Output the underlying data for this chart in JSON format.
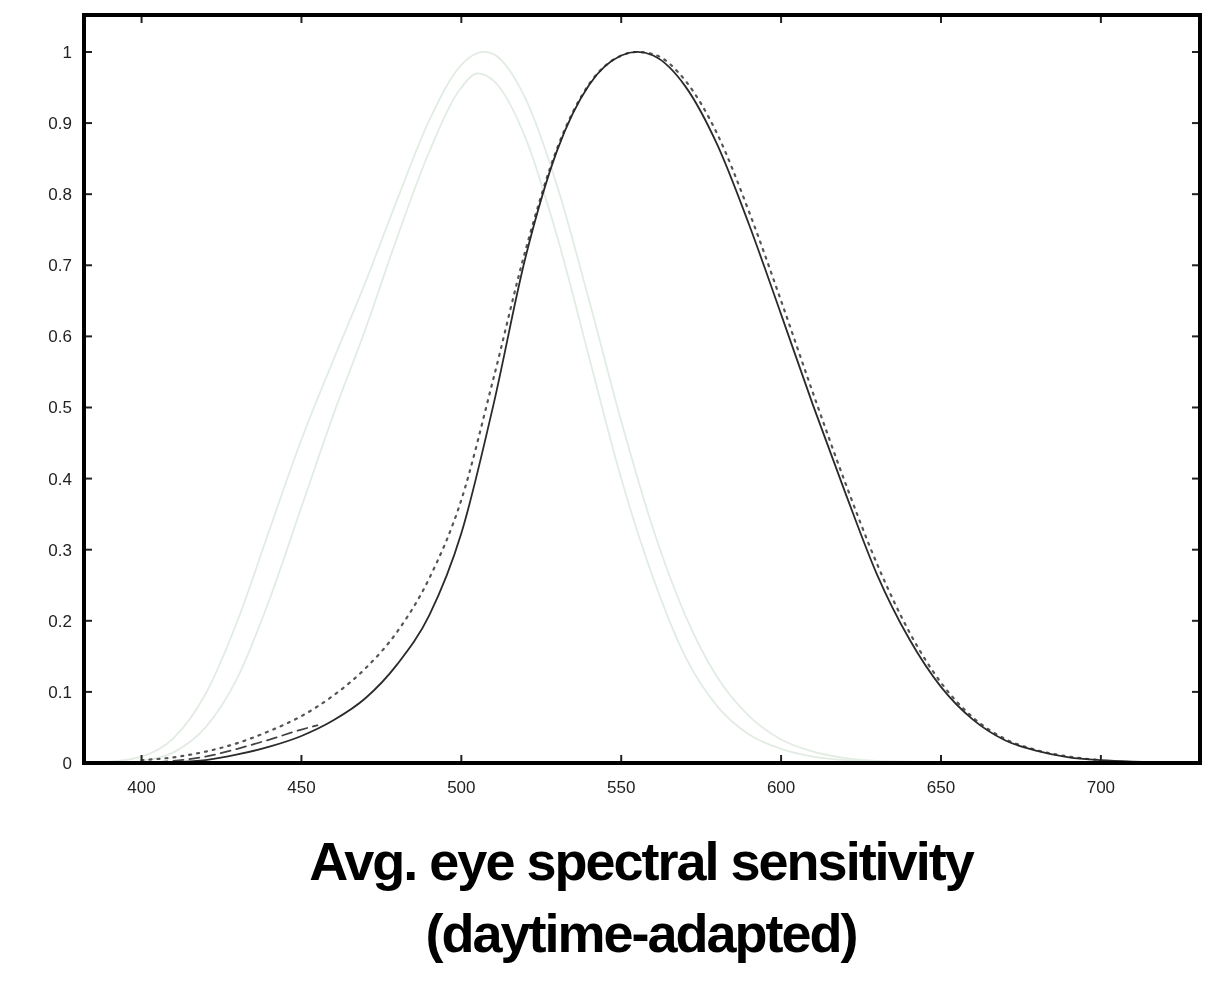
{
  "chart_data": {
    "type": "line",
    "title": "Avg. eye spectral sensitivity\n(daytime-adapted)",
    "xlim": [
      382,
      731
    ],
    "ylim": [
      0,
      1.052
    ],
    "xticks": [
      400,
      450,
      500,
      550,
      600,
      650,
      700
    ],
    "yticks": [
      0,
      {
        "value": 0.1,
        "label": "0.1"
      },
      {
        "value": 0.2,
        "label": "0.2"
      },
      {
        "value": 0.3,
        "label": "0.3"
      },
      {
        "value": 0.4,
        "label": "0.4"
      },
      {
        "value": 0.5,
        "label": "0.5"
      },
      {
        "value": 0.6,
        "label": "0.6"
      },
      {
        "value": 0.7,
        "label": "0.7"
      },
      {
        "value": 0.8,
        "label": "0.8"
      },
      {
        "value": 0.9,
        "label": "0.9"
      },
      1
    ],
    "grid": false,
    "series": [
      {
        "color": "#e2ece2",
        "line_style": "solid",
        "x": [
          390,
          400,
          410,
          420,
          430,
          440,
          450,
          460,
          470,
          480,
          490,
          500,
          507,
          510,
          520,
          530,
          540,
          550,
          560,
          570,
          580,
          590,
          600,
          610,
          620,
          630,
          640,
          650
        ],
        "values": [
          0.002,
          0.009,
          0.035,
          0.097,
          0.2,
          0.328,
          0.455,
          0.567,
          0.676,
          0.793,
          0.904,
          0.982,
          1.0,
          0.997,
          0.935,
          0.811,
          0.65,
          0.481,
          0.329,
          0.208,
          0.121,
          0.066,
          0.033,
          0.016,
          0.007,
          0.003,
          0.002,
          0.001
        ]
      },
      {
        "color": "#e2ece2",
        "line_style": "solid",
        "x": [
          400,
          410,
          420,
          430,
          440,
          450,
          460,
          470,
          480,
          490,
          500,
          505,
          510,
          520,
          530,
          540,
          550,
          560,
          570,
          580,
          590,
          600,
          610,
          620,
          630,
          640
        ],
        "values": [
          0.003,
          0.015,
          0.05,
          0.12,
          0.23,
          0.36,
          0.49,
          0.61,
          0.74,
          0.86,
          0.95,
          0.97,
          0.96,
          0.88,
          0.74,
          0.57,
          0.4,
          0.26,
          0.15,
          0.08,
          0.04,
          0.02,
          0.009,
          0.004,
          0.002,
          0.001
        ]
      },
      {
        "color": "#555555",
        "line_style": "dotted",
        "x": [
          400,
          410,
          420,
          430,
          440,
          450,
          460,
          470,
          480,
          490,
          500,
          510,
          520,
          530,
          540,
          550,
          555,
          560,
          570,
          580,
          590,
          600,
          610,
          620,
          630,
          640,
          650,
          660,
          670,
          680,
          690,
          700
        ],
        "values": [
          0.004,
          0.008,
          0.016,
          0.028,
          0.045,
          0.066,
          0.095,
          0.133,
          0.185,
          0.26,
          0.37,
          0.54,
          0.72,
          0.865,
          0.955,
          0.995,
          1.0,
          0.997,
          0.96,
          0.885,
          0.775,
          0.65,
          0.52,
          0.395,
          0.28,
          0.185,
          0.113,
          0.064,
          0.034,
          0.018,
          0.009,
          0.004
        ]
      },
      {
        "color": "#444444",
        "line_style": "dashed",
        "x": [
          405,
          410,
          420,
          430,
          440,
          450,
          455
        ],
        "values": [
          0.001,
          0.003,
          0.009,
          0.02,
          0.033,
          0.047,
          0.053
        ]
      },
      {
        "color": "#2a2a2a",
        "line_style": "solid",
        "x": [
          400,
          410,
          420,
          430,
          440,
          450,
          460,
          470,
          480,
          490,
          500,
          510,
          520,
          530,
          540,
          550,
          555,
          560,
          570,
          580,
          590,
          600,
          610,
          620,
          630,
          640,
          650,
          660,
          670,
          680,
          690,
          700,
          710,
          720,
          730
        ],
        "values": [
          0.0,
          0.001,
          0.004,
          0.012,
          0.023,
          0.038,
          0.06,
          0.091,
          0.139,
          0.208,
          0.323,
          0.503,
          0.71,
          0.862,
          0.954,
          0.995,
          1.0,
          0.995,
          0.952,
          0.87,
          0.757,
          0.631,
          0.503,
          0.381,
          0.265,
          0.175,
          0.107,
          0.061,
          0.032,
          0.017,
          0.008,
          0.004,
          0.002,
          0.001,
          0.0
        ]
      }
    ]
  }
}
